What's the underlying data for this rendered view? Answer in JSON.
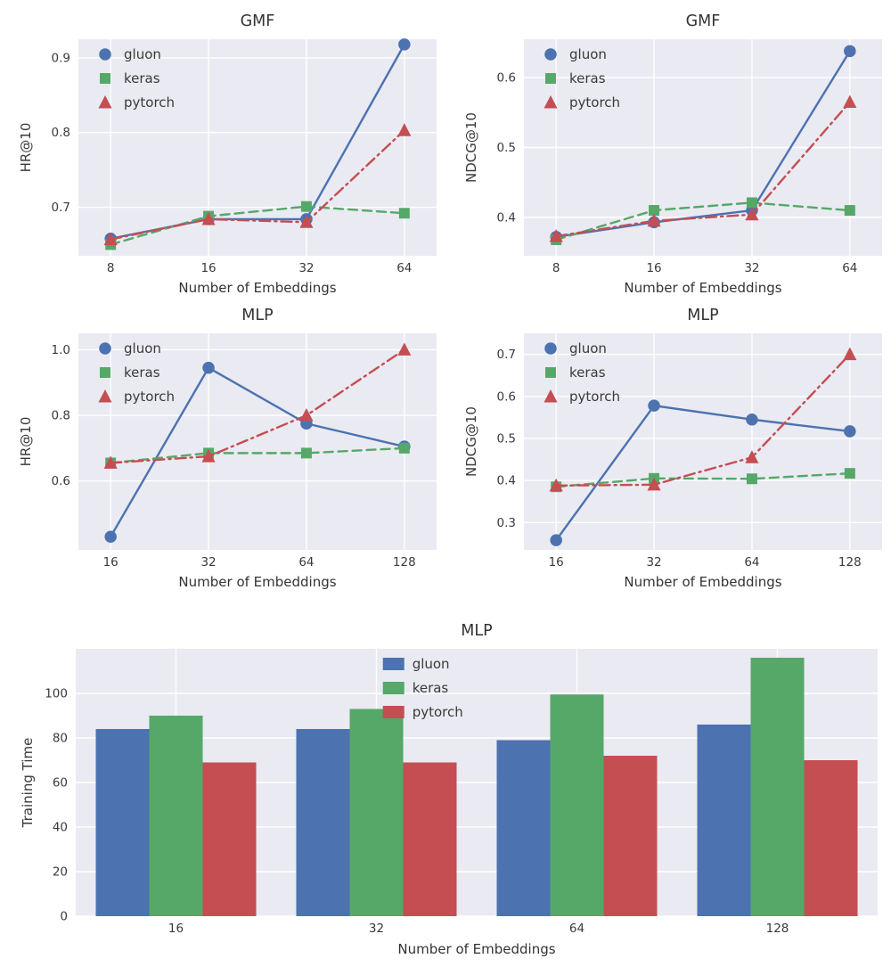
{
  "palette": {
    "figure_bg": "#ffffff",
    "axes_bg": "#eaeaf2",
    "grid": "#ffffff",
    "text": "#3a3a3a",
    "gluon": "#4c72b0",
    "keras": "#55a868",
    "pytorch": "#c44e52"
  },
  "chart_data": [
    {
      "id": "gmf-hr10",
      "type": "line",
      "title": "GMF",
      "xlabel": "Number of Embeddings",
      "ylabel": "HR@10",
      "categories": [
        "8",
        "16",
        "32",
        "64"
      ],
      "yticks": [
        "0.7",
        "0.8",
        "0.9"
      ],
      "ylim": [
        0.635,
        0.925
      ],
      "grid": true,
      "legend_position": "upper-left",
      "series": [
        {
          "name": "gluon",
          "color": "#4c72b0",
          "marker": "circle",
          "line_style": "solid",
          "values": [
            0.658,
            0.684,
            0.684,
            0.918
          ]
        },
        {
          "name": "keras",
          "color": "#55a868",
          "marker": "square",
          "line_style": "dashed",
          "values": [
            0.65,
            0.688,
            0.701,
            0.692
          ]
        },
        {
          "name": "pytorch",
          "color": "#c44e52",
          "marker": "triangle",
          "line_style": "dashdot",
          "values": [
            0.657,
            0.684,
            0.68,
            0.803
          ]
        }
      ]
    },
    {
      "id": "gmf-ndcg10",
      "type": "line",
      "title": "GMF",
      "xlabel": "Number of Embeddings",
      "ylabel": "NDCG@10",
      "categories": [
        "8",
        "16",
        "32",
        "64"
      ],
      "yticks": [
        "0.4",
        "0.5",
        "0.6"
      ],
      "ylim": [
        0.345,
        0.655
      ],
      "grid": true,
      "legend_position": "upper-left",
      "series": [
        {
          "name": "gluon",
          "color": "#4c72b0",
          "marker": "circle",
          "line_style": "solid",
          "values": [
            0.372,
            0.393,
            0.41,
            0.638
          ]
        },
        {
          "name": "keras",
          "color": "#55a868",
          "marker": "square",
          "line_style": "dashed",
          "values": [
            0.368,
            0.41,
            0.421,
            0.41
          ]
        },
        {
          "name": "pytorch",
          "color": "#c44e52",
          "marker": "triangle",
          "line_style": "dashdot",
          "values": [
            0.373,
            0.395,
            0.404,
            0.565
          ]
        }
      ]
    },
    {
      "id": "mlp-hr10",
      "type": "line",
      "title": "MLP",
      "xlabel": "Number of Embeddings",
      "ylabel": "HR@10",
      "categories": [
        "16",
        "32",
        "64",
        "128"
      ],
      "yticks": [
        "0.6",
        "0.8",
        "1.0"
      ],
      "ylim": [
        0.39,
        1.05
      ],
      "grid": true,
      "legend_position": "upper-left",
      "series": [
        {
          "name": "gluon",
          "color": "#4c72b0",
          "marker": "circle",
          "line_style": "solid",
          "values": [
            0.43,
            0.945,
            0.775,
            0.705
          ]
        },
        {
          "name": "keras",
          "color": "#55a868",
          "marker": "square",
          "line_style": "dashed",
          "values": [
            0.655,
            0.685,
            0.685,
            0.7
          ]
        },
        {
          "name": "pytorch",
          "color": "#c44e52",
          "marker": "triangle",
          "line_style": "dashdot",
          "values": [
            0.655,
            0.675,
            0.8,
            1.0
          ]
        }
      ]
    },
    {
      "id": "mlp-ndcg10",
      "type": "line",
      "title": "MLP",
      "xlabel": "Number of Embeddings",
      "ylabel": "NDCG@10",
      "categories": [
        "16",
        "32",
        "64",
        "128"
      ],
      "yticks": [
        "0.3",
        "0.4",
        "0.5",
        "0.6",
        "0.7"
      ],
      "ylim": [
        0.235,
        0.75
      ],
      "grid": true,
      "legend_position": "upper-left",
      "series": [
        {
          "name": "gluon",
          "color": "#4c72b0",
          "marker": "circle",
          "line_style": "solid",
          "values": [
            0.258,
            0.578,
            0.545,
            0.517
          ]
        },
        {
          "name": "keras",
          "color": "#55a868",
          "marker": "square",
          "line_style": "dashed",
          "values": [
            0.385,
            0.405,
            0.404,
            0.417
          ]
        },
        {
          "name": "pytorch",
          "color": "#c44e52",
          "marker": "triangle",
          "line_style": "dashdot",
          "values": [
            0.388,
            0.39,
            0.455,
            0.7
          ]
        }
      ]
    },
    {
      "id": "mlp-training-time",
      "type": "bar",
      "title": "MLP",
      "xlabel": "Number of Embeddings",
      "ylabel": "Training Time",
      "categories": [
        "16",
        "32",
        "64",
        "128"
      ],
      "yticks": [
        "0",
        "20",
        "40",
        "60",
        "80",
        "100"
      ],
      "ylim": [
        0,
        120
      ],
      "grid": true,
      "legend_position": "upper-center",
      "series": [
        {
          "name": "gluon",
          "color": "#4c72b0",
          "values": [
            84,
            84,
            79,
            86
          ]
        },
        {
          "name": "keras",
          "color": "#55a868",
          "values": [
            90,
            93,
            99.5,
            116
          ]
        },
        {
          "name": "pytorch",
          "color": "#c44e52",
          "values": [
            69,
            69,
            72,
            70
          ]
        }
      ]
    }
  ]
}
